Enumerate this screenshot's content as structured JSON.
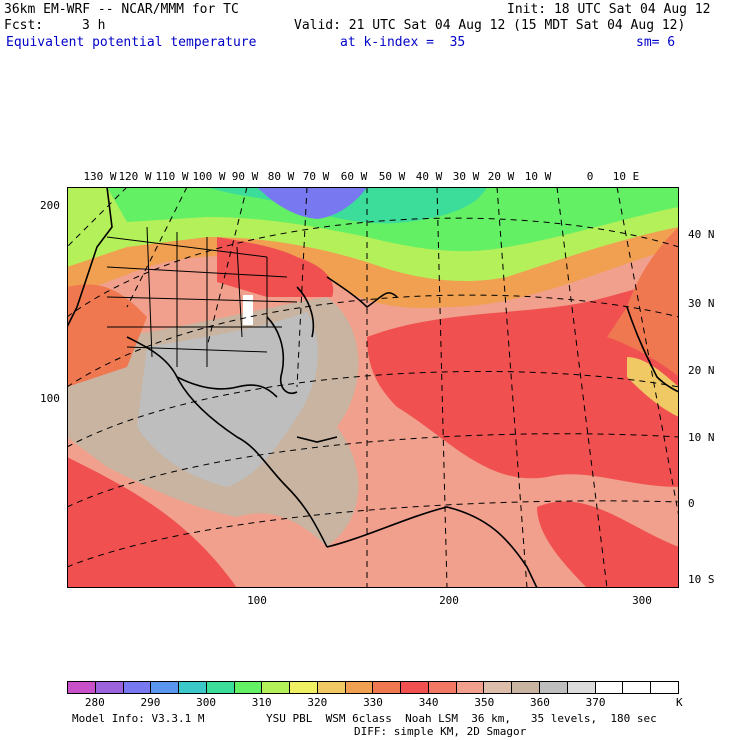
{
  "header": {
    "model": "36km EM-WRF -- NCAR/MMM for TC",
    "init": "Init: 18 UTC Sat 04 Aug 12",
    "fcst_label": "Fcst:",
    "fcst_value": "3 h",
    "valid": "Valid: 21 UTC Sat 04 Aug 12 (15 MDT Sat 04 Aug 12)",
    "field": "Equivalent potential temperature",
    "level": "at k-index =  35",
    "smoothing": "sm= 6"
  },
  "map": {
    "lon_labels": [
      "130 W",
      "120 W",
      "110 W",
      "100 W",
      "90 W",
      "80 W",
      "70 W",
      "60 W",
      "50 W",
      "40 W",
      "30 W",
      "20 W",
      "10 W",
      "0",
      "10 E"
    ],
    "lat_labels": [
      "40 N",
      "30 N",
      "20 N",
      "10 N",
      "0",
      "10 S"
    ],
    "y_axis_labels": [
      "200",
      "100"
    ],
    "x_axis_labels": [
      "100",
      "200",
      "300"
    ]
  },
  "colorbar": {
    "colors": [
      "#c850c8",
      "#9b64dc",
      "#7878f0",
      "#5a96f0",
      "#3cc8c8",
      "#3cdc9b",
      "#64f064",
      "#b4f05a",
      "#f0f064",
      "#f0c864",
      "#f0a050",
      "#f07850",
      "#f05050",
      "#f07864",
      "#f0a08c",
      "#dcbeaa",
      "#c8b4a0",
      "#bebebe",
      "#dcdcdc",
      "#ffffff",
      "#ffffff",
      "#ffffff"
    ],
    "tick_labels": [
      "280",
      "290",
      "300",
      "310",
      "320",
      "330",
      "340",
      "350",
      "360",
      "370"
    ],
    "unit": "K"
  },
  "footer": {
    "model_info": "Model Info: V3.3.1 M",
    "physics": "YSU PBL  WSM 6class  Noah LSM  36 km,   35 levels,  180 sec",
    "diffusion": "DIFF: simple KM, 2D Smagor"
  }
}
